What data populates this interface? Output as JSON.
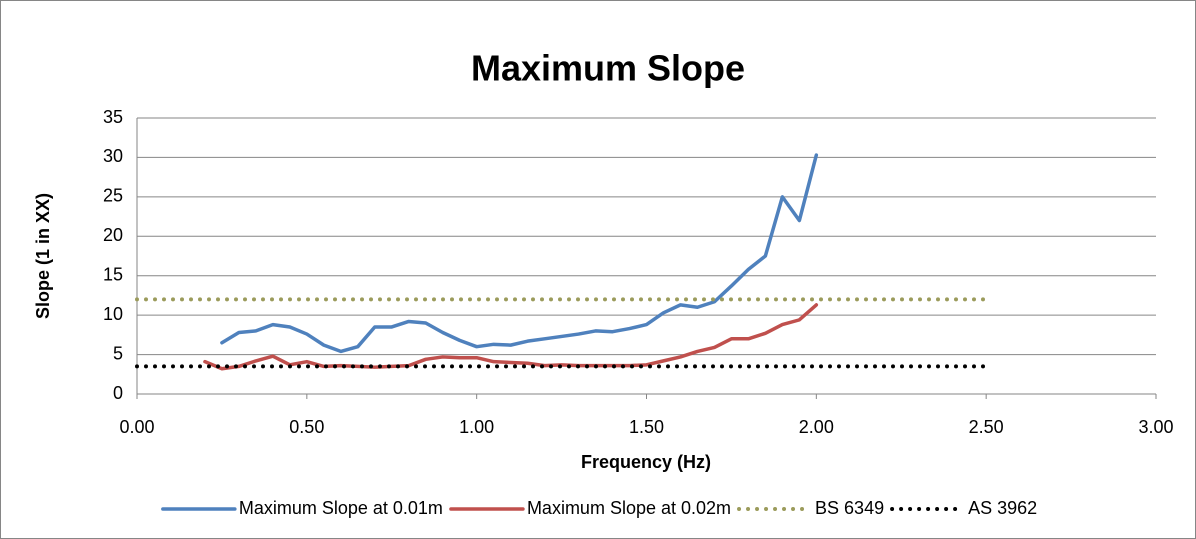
{
  "chart_data": {
    "type": "line",
    "title": "Maximum Slope",
    "x_label": "Frequency (Hz)",
    "y_label": "Slope (1 in XX)",
    "xlim": [
      0,
      3
    ],
    "ylim": [
      0,
      35
    ],
    "xticks": [
      {
        "value": 0,
        "label": "0.00"
      },
      {
        "value": 0.5,
        "label": "0.50"
      },
      {
        "value": 1,
        "label": "1.00"
      },
      {
        "value": 1.5,
        "label": "1.50"
      },
      {
        "value": 2,
        "label": "2.00"
      },
      {
        "value": 2.5,
        "label": "2.50"
      },
      {
        "value": 3,
        "label": "3.00"
      }
    ],
    "yticks": [
      0,
      5,
      10,
      15,
      20,
      25,
      30,
      35
    ],
    "grid": true,
    "legend": "bottom",
    "series": [
      {
        "name": "Maximum Slope at 0.01m",
        "color": "#4f81bd",
        "line_style": "solid",
        "x": [
          0.25,
          0.3,
          0.35,
          0.4,
          0.45,
          0.5,
          0.55,
          0.6,
          0.65,
          0.7,
          0.75,
          0.8,
          0.85,
          0.9,
          0.95,
          1.0,
          1.05,
          1.1,
          1.15,
          1.2,
          1.25,
          1.3,
          1.35,
          1.4,
          1.45,
          1.5,
          1.55,
          1.6,
          1.65,
          1.7,
          1.75,
          1.8,
          1.85,
          1.9,
          1.95,
          2.0
        ],
        "values": [
          6.5,
          7.8,
          8.0,
          8.8,
          8.5,
          7.6,
          6.2,
          5.4,
          6.0,
          8.5,
          8.5,
          9.2,
          9.0,
          7.8,
          6.8,
          6.0,
          6.3,
          6.2,
          6.7,
          7.0,
          7.3,
          7.6,
          8.0,
          7.9,
          8.3,
          8.8,
          10.3,
          11.3,
          11.0,
          11.7,
          13.7,
          15.8,
          17.5,
          25.0,
          22.0,
          30.3
        ]
      },
      {
        "name": "Maximum Slope at 0.02m",
        "color": "#c0504d",
        "line_style": "solid",
        "x": [
          0.2,
          0.25,
          0.3,
          0.35,
          0.4,
          0.45,
          0.5,
          0.55,
          0.6,
          0.65,
          0.7,
          0.75,
          0.8,
          0.85,
          0.9,
          0.95,
          1.0,
          1.05,
          1.1,
          1.15,
          1.2,
          1.25,
          1.3,
          1.35,
          1.4,
          1.45,
          1.5,
          1.55,
          1.6,
          1.65,
          1.7,
          1.75,
          1.8,
          1.85,
          1.9,
          1.95,
          2.0
        ],
        "values": [
          4.1,
          3.2,
          3.5,
          4.2,
          4.8,
          3.7,
          4.1,
          3.5,
          3.6,
          3.5,
          3.4,
          3.5,
          3.6,
          4.4,
          4.7,
          4.6,
          4.6,
          4.1,
          4.0,
          3.9,
          3.6,
          3.7,
          3.6,
          3.6,
          3.6,
          3.6,
          3.7,
          4.2,
          4.7,
          5.4,
          5.9,
          7.0,
          7.0,
          7.7,
          8.8,
          9.4,
          11.3
        ]
      },
      {
        "name": "BS 6349",
        "color": "#9b9b5b",
        "line_style": "dotted",
        "x": [
          0,
          2.5
        ],
        "values": [
          12,
          12
        ]
      },
      {
        "name": "AS 3962",
        "color": "#000000",
        "line_style": "dotted",
        "x": [
          0,
          2.5
        ],
        "values": [
          3.5,
          3.5
        ]
      }
    ]
  }
}
